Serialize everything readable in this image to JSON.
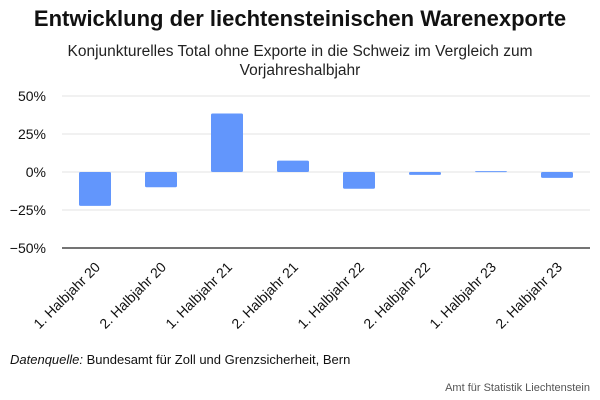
{
  "chart_data": {
    "type": "bar",
    "title": "Entwicklung der liechtensteinischen Warenexporte",
    "subtitle": "Konjunkturelles Total ohne Exporte in die Schweiz im Vergleich zum Vorjahreshalbjahr",
    "categories": [
      "1. Halbjahr 20",
      "2. Halbjahr 20",
      "1. Halbjahr 21",
      "2. Halbjahr 21",
      "1. Halbjahr 22",
      "2. Halbjahr 22",
      "1. Halbjahr 23",
      "2. Halbjahr 23"
    ],
    "values": [
      -22.3,
      -10.0,
      38.5,
      7.5,
      -11.0,
      -1.9,
      0.6,
      -3.9
    ],
    "ylim": [
      -50,
      50
    ],
    "yticks": [
      -50,
      -25,
      0,
      25,
      50
    ],
    "ytick_labels": [
      "−50%",
      "−25%",
      "0%",
      "25%",
      "50%"
    ],
    "grid": true,
    "bar_color": "#6296fc"
  },
  "footer": {
    "source_label": "Datenquelle:",
    "source_text": " Bundesamt für Zoll und Grenzsicherheit, Bern",
    "credit": "Amt für Statistik Liechtenstein"
  }
}
